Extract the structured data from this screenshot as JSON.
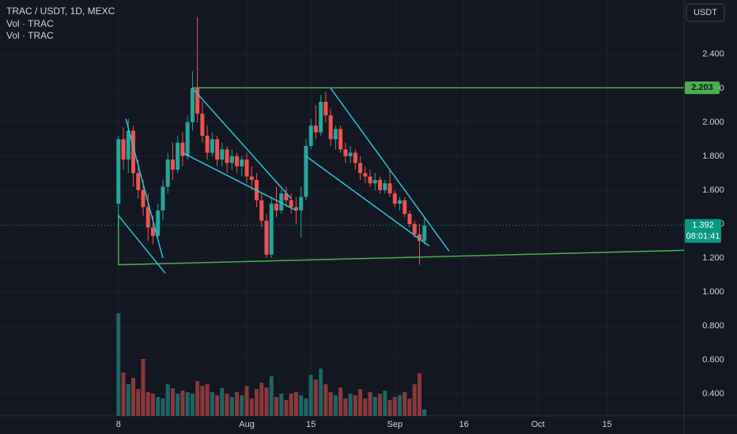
{
  "chart_data": {
    "type": "candlestick",
    "title": "TRAC / USDT, 1D, MEXC",
    "indicators": [
      "Vol · TRAC",
      "Vol · TRAC"
    ],
    "currency_button": "USDT",
    "up_color": "#26a69a",
    "down_color": "#ef5350",
    "ylim": [
      0.27,
      2.72
    ],
    "yticks": [
      {
        "value": 0.4,
        "label": "0.400"
      },
      {
        "value": 0.6,
        "label": "0.600"
      },
      {
        "value": 0.8,
        "label": "0.800"
      },
      {
        "value": 1.0,
        "label": "1.000"
      },
      {
        "value": 1.2,
        "label": "1.200"
      },
      {
        "value": 1.4,
        "label": "1.400"
      },
      {
        "value": 1.6,
        "label": "1.600"
      },
      {
        "value": 1.8,
        "label": "1.800"
      },
      {
        "value": 2.0,
        "label": "2.000"
      },
      {
        "value": 2.2,
        "label": "2.200"
      },
      {
        "value": 2.4,
        "label": "2.400"
      }
    ],
    "xlim": [
      -24,
      114.6
    ],
    "xticks": [
      {
        "value": 0,
        "label": "8"
      },
      {
        "value": 26,
        "label": "Aug"
      },
      {
        "value": 39,
        "label": "15"
      },
      {
        "value": 56,
        "label": "Sep"
      },
      {
        "value": 70,
        "label": "16"
      },
      {
        "value": 85,
        "label": "Oct"
      },
      {
        "value": 99,
        "label": "15"
      }
    ],
    "candles": [
      [
        1.52,
        1.92,
        1.46,
        1.9
      ],
      [
        1.9,
        1.97,
        1.72,
        1.78
      ],
      [
        1.78,
        2.02,
        1.7,
        1.95
      ],
      [
        1.95,
        1.98,
        1.62,
        1.7
      ],
      [
        1.7,
        1.78,
        1.55,
        1.6
      ],
      [
        1.6,
        1.66,
        1.45,
        1.5
      ],
      [
        1.5,
        1.58,
        1.3,
        1.38
      ],
      [
        1.38,
        1.45,
        1.28,
        1.33
      ],
      [
        1.33,
        1.52,
        1.3,
        1.48
      ],
      [
        1.48,
        1.66,
        1.42,
        1.62
      ],
      [
        1.62,
        1.82,
        1.58,
        1.78
      ],
      [
        1.78,
        1.88,
        1.66,
        1.72
      ],
      [
        1.72,
        1.92,
        1.7,
        1.88
      ],
      [
        1.88,
        1.94,
        1.74,
        1.8
      ],
      [
        1.8,
        2.04,
        1.78,
        2.0
      ],
      [
        2.0,
        2.3,
        1.95,
        2.2
      ],
      [
        2.2,
        2.62,
        2.0,
        2.05
      ],
      [
        2.05,
        2.12,
        1.88,
        1.92
      ],
      [
        1.92,
        1.98,
        1.78,
        1.82
      ],
      [
        1.82,
        1.94,
        1.8,
        1.9
      ],
      [
        1.9,
        1.92,
        1.74,
        1.78
      ],
      [
        1.78,
        1.88,
        1.74,
        1.84
      ],
      [
        1.84,
        1.86,
        1.7,
        1.76
      ],
      [
        1.76,
        1.84,
        1.72,
        1.8
      ],
      [
        1.8,
        1.82,
        1.7,
        1.74
      ],
      [
        1.74,
        1.8,
        1.68,
        1.78
      ],
      [
        1.78,
        1.82,
        1.64,
        1.68
      ],
      [
        1.68,
        1.74,
        1.6,
        1.66
      ],
      [
        1.66,
        1.7,
        1.5,
        1.54
      ],
      [
        1.54,
        1.58,
        1.38,
        1.42
      ],
      [
        1.42,
        1.46,
        1.2,
        1.22
      ],
      [
        1.22,
        1.56,
        1.2,
        1.52
      ],
      [
        1.52,
        1.62,
        1.44,
        1.48
      ],
      [
        1.48,
        1.6,
        1.46,
        1.58
      ],
      [
        1.58,
        1.62,
        1.5,
        1.54
      ],
      [
        1.54,
        1.58,
        1.46,
        1.5
      ],
      [
        1.5,
        1.56,
        1.4,
        1.48
      ],
      [
        1.48,
        1.62,
        1.32,
        1.56
      ],
      [
        1.56,
        1.9,
        1.54,
        1.86
      ],
      [
        1.86,
        2.02,
        1.84,
        1.98
      ],
      [
        1.98,
        2.1,
        1.9,
        1.94
      ],
      [
        1.94,
        2.16,
        1.92,
        2.12
      ],
      [
        2.12,
        2.18,
        2.0,
        2.04
      ],
      [
        2.04,
        2.08,
        1.86,
        1.9
      ],
      [
        1.9,
        1.98,
        1.84,
        1.96
      ],
      [
        1.96,
        1.98,
        1.82,
        1.84
      ],
      [
        1.84,
        1.88,
        1.76,
        1.8
      ],
      [
        1.8,
        1.86,
        1.76,
        1.82
      ],
      [
        1.82,
        1.84,
        1.72,
        1.76
      ],
      [
        1.76,
        1.8,
        1.66,
        1.7
      ],
      [
        1.7,
        1.74,
        1.64,
        1.68
      ],
      [
        1.68,
        1.72,
        1.62,
        1.64
      ],
      [
        1.64,
        1.7,
        1.6,
        1.66
      ],
      [
        1.66,
        1.68,
        1.58,
        1.6
      ],
      [
        1.6,
        1.66,
        1.58,
        1.64
      ],
      [
        1.64,
        1.72,
        1.56,
        1.58
      ],
      [
        1.58,
        1.6,
        1.5,
        1.52
      ],
      [
        1.52,
        1.56,
        1.48,
        1.54
      ],
      [
        1.54,
        1.56,
        1.44,
        1.46
      ],
      [
        1.46,
        1.48,
        1.38,
        1.4
      ],
      [
        1.4,
        1.42,
        1.32,
        1.34
      ],
      [
        1.34,
        1.4,
        1.16,
        1.3
      ],
      [
        1.3,
        1.44,
        1.28,
        1.392
      ]
    ],
    "volume": [
      130,
      55,
      40,
      48,
      34,
      72,
      30,
      28,
      24,
      22,
      40,
      35,
      28,
      32,
      30,
      28,
      44,
      38,
      40,
      30,
      26,
      35,
      28,
      24,
      30,
      26,
      38,
      22,
      34,
      42,
      36,
      50,
      24,
      28,
      20,
      28,
      30,
      26,
      22,
      52,
      46,
      60,
      40,
      30,
      26,
      36,
      22,
      28,
      26,
      34,
      22,
      30,
      24,
      28,
      32,
      20,
      24,
      26,
      30,
      22,
      40,
      54,
      8
    ],
    "drawings": [
      {
        "color": "#4caf50",
        "points": [
          [
            15,
            2.203
          ],
          [
            114.6,
            2.203
          ]
        ]
      },
      {
        "color": "#4caf50",
        "points": [
          [
            0,
            1.46
          ],
          [
            0,
            1.16
          ],
          [
            114.6,
            1.245
          ]
        ]
      },
      {
        "color": "#26c6da",
        "points": [
          [
            1.5,
            2.02
          ],
          [
            9,
            1.2
          ]
        ]
      },
      {
        "color": "#26c6da",
        "points": [
          [
            0,
            1.45
          ],
          [
            9.5,
            1.11
          ]
        ]
      },
      {
        "color": "#26c6da",
        "points": [
          [
            15,
            2.2
          ],
          [
            35,
            1.55
          ]
        ]
      },
      {
        "color": "#26c6da",
        "points": [
          [
            13,
            1.82
          ],
          [
            36,
            1.48
          ]
        ]
      },
      {
        "color": "#26c6da",
        "points": [
          [
            43,
            2.2
          ],
          [
            67,
            1.24
          ]
        ]
      },
      {
        "color": "#26c6da",
        "points": [
          [
            38,
            1.8
          ],
          [
            63,
            1.27
          ]
        ]
      }
    ],
    "level_label": 2.203,
    "level_color": "#4caf50",
    "last_price": 1.392,
    "countdown": "08:01:41",
    "last_color": "#089981"
  }
}
